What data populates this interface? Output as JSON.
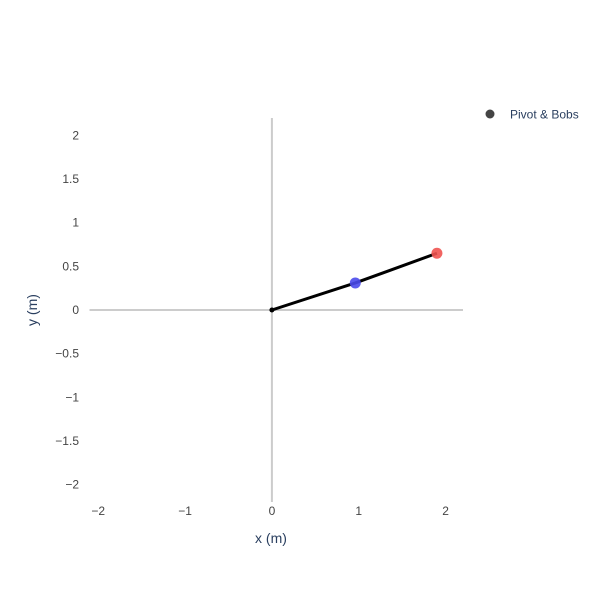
{
  "chart_data": {
    "type": "scatter",
    "title": "",
    "xlabel": "x (m)",
    "ylabel": "y (m)",
    "xlim": [
      -2.1,
      2.2
    ],
    "ylim": [
      -2.2,
      2.2
    ],
    "xticks": [
      -2,
      -1,
      0,
      1,
      2
    ],
    "yticks": [
      -2,
      -1.5,
      -1,
      -0.5,
      0,
      0.5,
      1,
      1.5,
      2
    ],
    "xtick_labels": [
      "−2",
      "−1",
      "0",
      "1",
      "2"
    ],
    "ytick_labels": [
      "−2",
      "−1.5",
      "−1",
      "−0.5",
      "0",
      "0.5",
      "1",
      "1.5",
      "2"
    ],
    "grid": false,
    "zero_lines": true,
    "legend_position": "top-right",
    "series": [
      {
        "name": "Pivot & Bobs",
        "mode": "lines+markers",
        "line_color": "#000000",
        "legend_marker_color": "#444444",
        "points": [
          {
            "x": 0,
            "y": 0,
            "color": "#000000",
            "size": "small"
          },
          {
            "x": 0.96,
            "y": 0.31,
            "color": "#4a4aeb",
            "size": "large"
          },
          {
            "x": 1.9,
            "y": 0.65,
            "color": "#ef5350",
            "size": "large"
          }
        ]
      }
    ]
  }
}
